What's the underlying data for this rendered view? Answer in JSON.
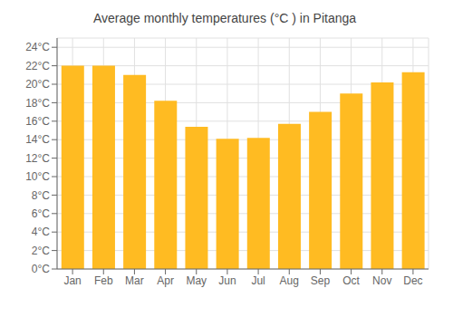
{
  "chart_data": {
    "type": "bar",
    "title": "Average monthly temperatures (°C ) in Pitanga",
    "categories": [
      "Jan",
      "Feb",
      "Mar",
      "Apr",
      "May",
      "Jun",
      "Jul",
      "Aug",
      "Sep",
      "Oct",
      "Nov",
      "Dec"
    ],
    "values": [
      22.0,
      22.0,
      21.0,
      18.2,
      15.4,
      14.1,
      14.2,
      15.7,
      17.0,
      19.0,
      20.2,
      21.3
    ],
    "color": "#FFBB22",
    "ylim": [
      0,
      25
    ],
    "yticks": [
      {
        "value": 0,
        "label": "0°C"
      },
      {
        "value": 2,
        "label": "2°C"
      },
      {
        "value": 4,
        "label": "4°C"
      },
      {
        "value": 6,
        "label": "6°C"
      },
      {
        "value": 8,
        "label": "8°C"
      },
      {
        "value": 10,
        "label": "10°C"
      },
      {
        "value": 12,
        "label": "12°C"
      },
      {
        "value": 14,
        "label": "14°C"
      },
      {
        "value": 16,
        "label": "16°C"
      },
      {
        "value": 18,
        "label": "18°C"
      },
      {
        "value": 20,
        "label": "20°C"
      },
      {
        "value": 22,
        "label": "22°C"
      },
      {
        "value": 24,
        "label": "24°C"
      }
    ],
    "grid": true
  }
}
